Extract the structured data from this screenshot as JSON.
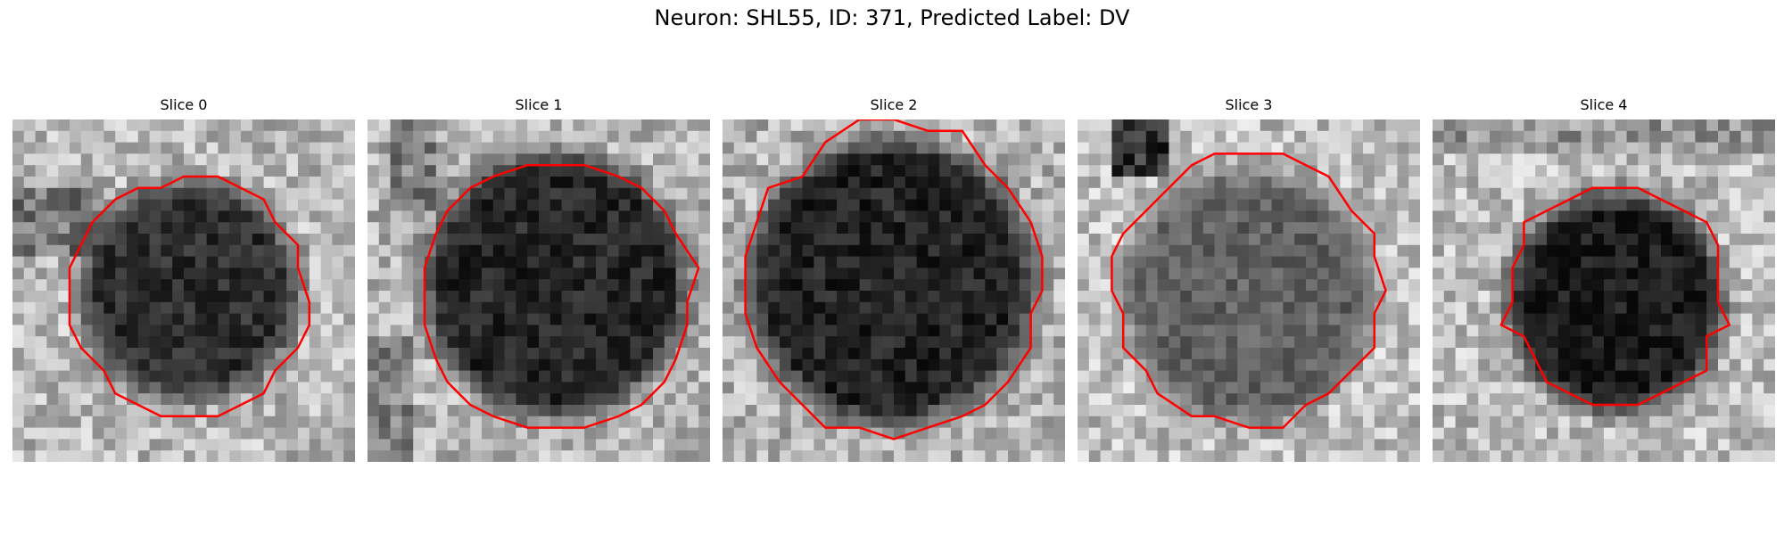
{
  "figure": {
    "title": "Neuron: SHL55, ID: 371, Predicted Label: DV"
  },
  "panels": [
    {
      "title": "Slice 0",
      "contour_color": "#ff0000"
    },
    {
      "title": "Slice 1",
      "contour_color": "#ff0000"
    },
    {
      "title": "Slice 2",
      "contour_color": "#ff0000"
    },
    {
      "title": "Slice 3",
      "contour_color": "#ff0000"
    },
    {
      "title": "Slice 4",
      "contour_color": "#ff0000"
    }
  ],
  "colormap": "gray"
}
